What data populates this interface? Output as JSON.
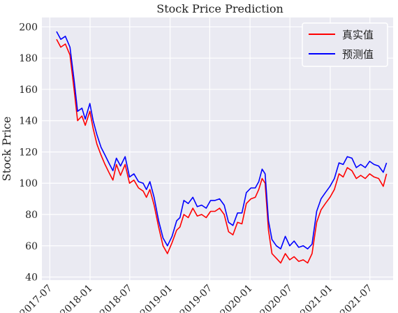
{
  "chart_data": {
    "type": "line",
    "title": "Stock Price Prediction",
    "xlabel": "",
    "ylabel": "Stock Price",
    "ylim": [
      38,
      206
    ],
    "xlim": [
      "2017-05-26",
      "2021-10-15"
    ],
    "y_ticks": [
      40,
      60,
      80,
      100,
      120,
      140,
      160,
      180,
      200
    ],
    "x_ticks": [
      "2017-07",
      "2018-01",
      "2018-07",
      "2019-01",
      "2019-07",
      "2020-01",
      "2020-07",
      "2021-01",
      "2021-07"
    ],
    "x_tick_dates": [
      "2017-07-01",
      "2018-01-01",
      "2018-07-01",
      "2019-01-01",
      "2019-07-01",
      "2020-01-01",
      "2020-07-01",
      "2021-01-01",
      "2021-07-01"
    ],
    "grid": true,
    "legend_position": "top-right",
    "x": [
      "2017-08-01",
      "2017-08-20",
      "2017-09-10",
      "2017-10-01",
      "2017-10-20",
      "2017-11-05",
      "2017-11-25",
      "2017-12-10",
      "2017-12-31",
      "2018-01-15",
      "2018-02-01",
      "2018-02-20",
      "2018-03-10",
      "2018-03-31",
      "2018-04-15",
      "2018-05-01",
      "2018-05-20",
      "2018-06-10",
      "2018-06-30",
      "2018-07-20",
      "2018-08-10",
      "2018-08-31",
      "2018-09-15",
      "2018-10-01",
      "2018-10-20",
      "2018-11-10",
      "2018-11-30",
      "2018-12-20",
      "2019-01-10",
      "2019-01-31",
      "2019-02-15",
      "2019-03-05",
      "2019-03-25",
      "2019-04-15",
      "2019-05-05",
      "2019-05-25",
      "2019-06-15",
      "2019-07-05",
      "2019-07-25",
      "2019-08-15",
      "2019-09-05",
      "2019-09-25",
      "2019-10-15",
      "2019-11-05",
      "2019-11-25",
      "2019-12-15",
      "2020-01-05",
      "2020-01-25",
      "2020-02-10",
      "2020-02-25",
      "2020-03-10",
      "2020-03-25",
      "2020-04-10",
      "2020-04-30",
      "2020-05-20",
      "2020-06-10",
      "2020-06-30",
      "2020-07-20",
      "2020-08-10",
      "2020-08-31",
      "2020-09-20",
      "2020-10-10",
      "2020-10-31",
      "2020-11-20",
      "2020-12-10",
      "2020-12-31",
      "2021-01-20",
      "2021-02-10",
      "2021-03-01",
      "2021-03-20",
      "2021-04-10",
      "2021-04-30",
      "2021-05-20",
      "2021-06-10",
      "2021-06-30",
      "2021-07-20",
      "2021-08-10",
      "2021-08-31",
      "2021-09-15"
    ],
    "series": [
      {
        "name": "真实值",
        "color": "#ff0000",
        "values": [
          192,
          187,
          189,
          182,
          160,
          140,
          143,
          137,
          146,
          135,
          125,
          118,
          112,
          106,
          102,
          112,
          105,
          112,
          100,
          102,
          97,
          95,
          91,
          96,
          86,
          72,
          60,
          55,
          62,
          70,
          72,
          80,
          78,
          84,
          79,
          80,
          78,
          82,
          82,
          84,
          80,
          69,
          67,
          75,
          74,
          87,
          90,
          91,
          96,
          103,
          100,
          70,
          55,
          52,
          49,
          55,
          51,
          53,
          50,
          51,
          49,
          55,
          75,
          83,
          87,
          91,
          96,
          106,
          104,
          110,
          108,
          103,
          105,
          103,
          106,
          104,
          103,
          98,
          106
        ]
      },
      {
        "name": "预测值",
        "color": "#0000ff",
        "values": [
          197,
          192,
          194,
          187,
          166,
          146,
          148,
          141,
          151,
          140,
          131,
          123,
          118,
          112,
          108,
          116,
          111,
          117,
          104,
          106,
          101,
          100,
          96,
          101,
          91,
          76,
          65,
          60,
          66,
          76,
          78,
          89,
          87,
          91,
          85,
          86,
          84,
          89,
          89,
          90,
          86,
          75,
          73,
          81,
          81,
          94,
          97,
          97,
          101,
          109,
          106,
          76,
          64,
          60,
          58,
          66,
          60,
          63,
          59,
          60,
          58,
          61,
          82,
          90,
          94,
          98,
          103,
          113,
          112,
          117,
          116,
          110,
          112,
          110,
          114,
          112,
          111,
          107,
          113
        ]
      }
    ]
  }
}
